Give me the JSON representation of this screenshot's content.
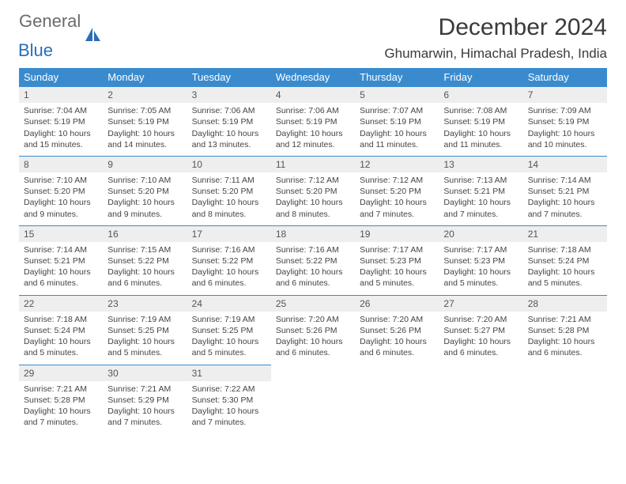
{
  "logo": {
    "part1": "General",
    "part2": "Blue"
  },
  "header": {
    "title": "December 2024",
    "location": "Ghumarwin, Himachal Pradesh, India"
  },
  "colors": {
    "header_bg": "#3a8bce",
    "header_text": "#ffffff",
    "daynum_bg": "#eeeeee",
    "border": "#3a8bce",
    "logo_blue": "#2a6db8",
    "logo_gray": "#6b6b6b"
  },
  "weekdays": [
    "Sunday",
    "Monday",
    "Tuesday",
    "Wednesday",
    "Thursday",
    "Friday",
    "Saturday"
  ],
  "days": [
    {
      "n": "1",
      "sr": "7:04 AM",
      "ss": "5:19 PM",
      "dl": "10 hours and 15 minutes."
    },
    {
      "n": "2",
      "sr": "7:05 AM",
      "ss": "5:19 PM",
      "dl": "10 hours and 14 minutes."
    },
    {
      "n": "3",
      "sr": "7:06 AM",
      "ss": "5:19 PM",
      "dl": "10 hours and 13 minutes."
    },
    {
      "n": "4",
      "sr": "7:06 AM",
      "ss": "5:19 PM",
      "dl": "10 hours and 12 minutes."
    },
    {
      "n": "5",
      "sr": "7:07 AM",
      "ss": "5:19 PM",
      "dl": "10 hours and 11 minutes."
    },
    {
      "n": "6",
      "sr": "7:08 AM",
      "ss": "5:19 PM",
      "dl": "10 hours and 11 minutes."
    },
    {
      "n": "7",
      "sr": "7:09 AM",
      "ss": "5:19 PM",
      "dl": "10 hours and 10 minutes."
    },
    {
      "n": "8",
      "sr": "7:10 AM",
      "ss": "5:20 PM",
      "dl": "10 hours and 9 minutes."
    },
    {
      "n": "9",
      "sr": "7:10 AM",
      "ss": "5:20 PM",
      "dl": "10 hours and 9 minutes."
    },
    {
      "n": "10",
      "sr": "7:11 AM",
      "ss": "5:20 PM",
      "dl": "10 hours and 8 minutes."
    },
    {
      "n": "11",
      "sr": "7:12 AM",
      "ss": "5:20 PM",
      "dl": "10 hours and 8 minutes."
    },
    {
      "n": "12",
      "sr": "7:12 AM",
      "ss": "5:20 PM",
      "dl": "10 hours and 7 minutes."
    },
    {
      "n": "13",
      "sr": "7:13 AM",
      "ss": "5:21 PM",
      "dl": "10 hours and 7 minutes."
    },
    {
      "n": "14",
      "sr": "7:14 AM",
      "ss": "5:21 PM",
      "dl": "10 hours and 7 minutes."
    },
    {
      "n": "15",
      "sr": "7:14 AM",
      "ss": "5:21 PM",
      "dl": "10 hours and 6 minutes."
    },
    {
      "n": "16",
      "sr": "7:15 AM",
      "ss": "5:22 PM",
      "dl": "10 hours and 6 minutes."
    },
    {
      "n": "17",
      "sr": "7:16 AM",
      "ss": "5:22 PM",
      "dl": "10 hours and 6 minutes."
    },
    {
      "n": "18",
      "sr": "7:16 AM",
      "ss": "5:22 PM",
      "dl": "10 hours and 6 minutes."
    },
    {
      "n": "19",
      "sr": "7:17 AM",
      "ss": "5:23 PM",
      "dl": "10 hours and 5 minutes."
    },
    {
      "n": "20",
      "sr": "7:17 AM",
      "ss": "5:23 PM",
      "dl": "10 hours and 5 minutes."
    },
    {
      "n": "21",
      "sr": "7:18 AM",
      "ss": "5:24 PM",
      "dl": "10 hours and 5 minutes."
    },
    {
      "n": "22",
      "sr": "7:18 AM",
      "ss": "5:24 PM",
      "dl": "10 hours and 5 minutes."
    },
    {
      "n": "23",
      "sr": "7:19 AM",
      "ss": "5:25 PM",
      "dl": "10 hours and 5 minutes."
    },
    {
      "n": "24",
      "sr": "7:19 AM",
      "ss": "5:25 PM",
      "dl": "10 hours and 5 minutes."
    },
    {
      "n": "25",
      "sr": "7:20 AM",
      "ss": "5:26 PM",
      "dl": "10 hours and 6 minutes."
    },
    {
      "n": "26",
      "sr": "7:20 AM",
      "ss": "5:26 PM",
      "dl": "10 hours and 6 minutes."
    },
    {
      "n": "27",
      "sr": "7:20 AM",
      "ss": "5:27 PM",
      "dl": "10 hours and 6 minutes."
    },
    {
      "n": "28",
      "sr": "7:21 AM",
      "ss": "5:28 PM",
      "dl": "10 hours and 6 minutes."
    },
    {
      "n": "29",
      "sr": "7:21 AM",
      "ss": "5:28 PM",
      "dl": "10 hours and 7 minutes."
    },
    {
      "n": "30",
      "sr": "7:21 AM",
      "ss": "5:29 PM",
      "dl": "10 hours and 7 minutes."
    },
    {
      "n": "31",
      "sr": "7:22 AM",
      "ss": "5:30 PM",
      "dl": "10 hours and 7 minutes."
    }
  ],
  "labels": {
    "sunrise": "Sunrise: ",
    "sunset": "Sunset: ",
    "daylight": "Daylight: "
  }
}
